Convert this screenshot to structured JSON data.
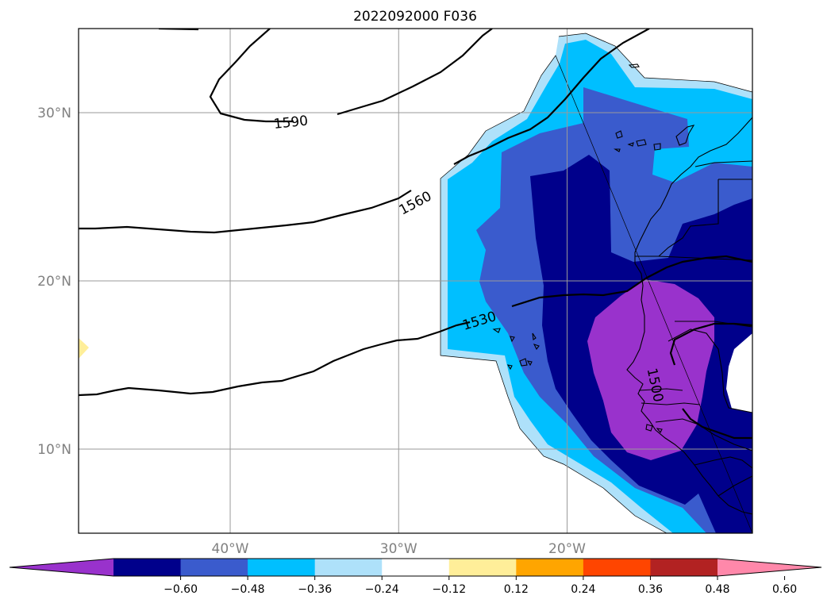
{
  "title": "2022092000 F036",
  "map": {
    "lon_range": [
      -49,
      -9
    ],
    "lat_range": [
      5,
      35
    ],
    "lat_ticks": [
      {
        "value": 30,
        "label": "30°N"
      },
      {
        "value": 20,
        "label": "20°N"
      },
      {
        "value": 10,
        "label": "10°N"
      }
    ],
    "lon_ticks": [
      {
        "value": -40,
        "label": "40°W"
      },
      {
        "value": -30,
        "label": "30°W"
      },
      {
        "value": -20,
        "label": "20°W"
      }
    ],
    "gridlines": true
  },
  "contours": [
    {
      "level": 1590,
      "label": "1590",
      "label_lon": -36.4,
      "label_lat": 29.4,
      "label_angle": -6
    },
    {
      "level": 1560,
      "label": "1560",
      "label_lon": -29.0,
      "label_lat": 24.6,
      "label_angle": -28
    },
    {
      "level": 1530,
      "label": "1530",
      "label_lon": -25.2,
      "label_lat": 17.6,
      "label_angle": -17
    },
    {
      "level": 1500,
      "label": "1500",
      "label_lon": -14.8,
      "label_lat": 13.8,
      "label_angle": 78
    }
  ],
  "colorbar": {
    "colors": [
      "#9932CC",
      "#00008B",
      "#3A5BCD",
      "#00BFFF",
      "#AEE1FA",
      "#FFFFFF",
      "#FFEE99",
      "#FFA500",
      "#FF4500",
      "#B22222",
      "#FF88AA"
    ],
    "tick_labels": [
      "−0.60",
      "−0.48",
      "−0.36",
      "−0.24",
      "−0.12",
      "0.12",
      "0.24",
      "0.36",
      "0.48",
      "0.60"
    ],
    "extend": "both"
  }
}
